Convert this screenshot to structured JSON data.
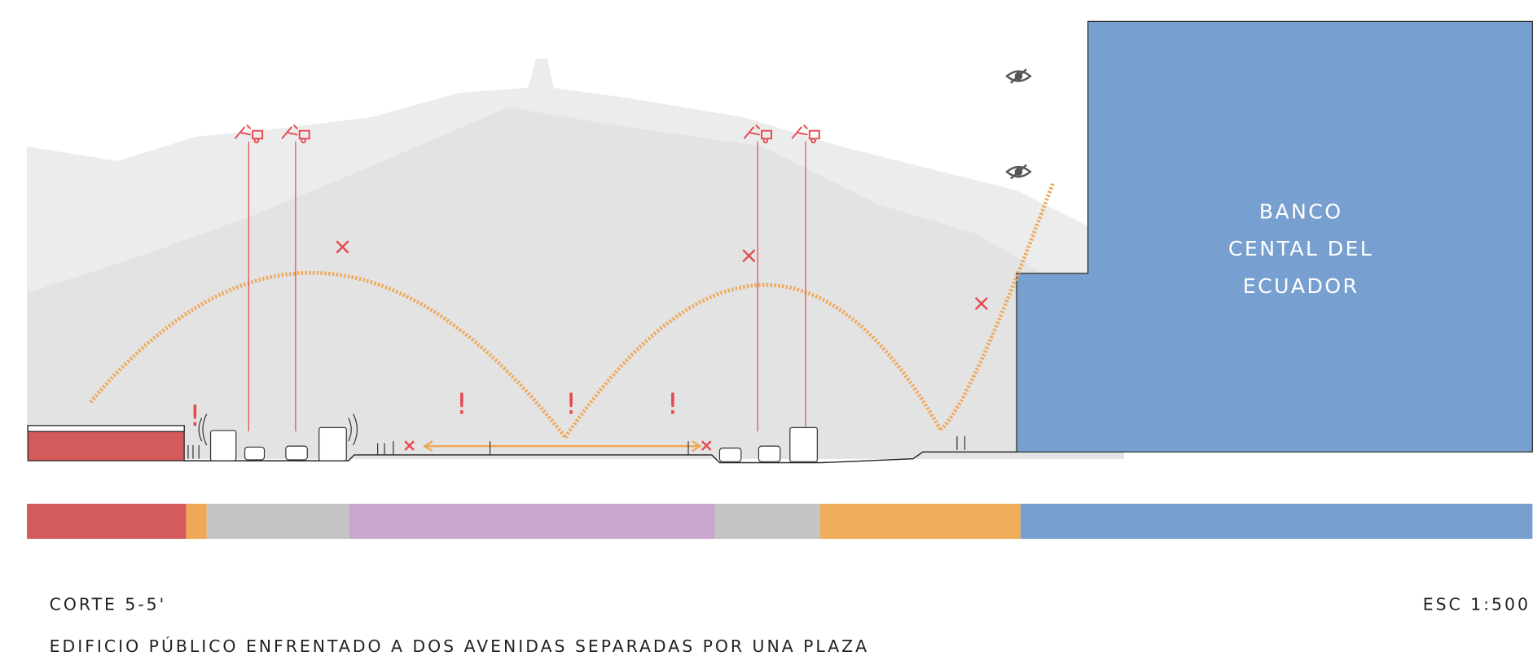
{
  "building": {
    "label_lines": [
      "BANCO",
      "CENTAL DEL",
      "ECUADOR"
    ]
  },
  "alerts": [
    "!",
    "!",
    "!",
    "!"
  ],
  "footer": {
    "section": "CORTE 5-5'",
    "scale": "ESC 1:500",
    "caption": "EDIFICIO PÚBLICO ENFRENTADO A DOS AVENIDAS SEPARADAS POR UNA PLAZA"
  }
}
